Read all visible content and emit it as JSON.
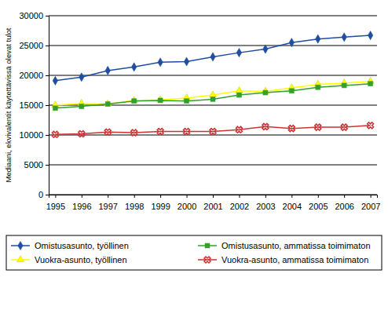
{
  "chart_data": {
    "type": "line",
    "y_label": "Mediaani, ekvivalentit käytettävissä olevat tulot",
    "categories": [
      "1995",
      "1996",
      "1997",
      "1998",
      "1999",
      "2000",
      "2001",
      "2002",
      "2003",
      "2004",
      "2005",
      "2006",
      "2007"
    ],
    "series": [
      {
        "name": "Omistusasunto, työllinen",
        "color": "#1f4e9e",
        "marker": "diamond",
        "values": [
          19100,
          19700,
          20800,
          21400,
          22200,
          22300,
          23100,
          23800,
          24400,
          25500,
          26100,
          26400,
          26700
        ]
      },
      {
        "name": "Vuokra-asunto, työllinen",
        "color": "#ffff00",
        "marker": "triangle",
        "values": [
          15000,
          15300,
          15200,
          15800,
          15900,
          16200,
          16700,
          17400,
          17300,
          17900,
          18500,
          18700,
          19000
        ]
      },
      {
        "name": "Omistusasunto, ammatissa toimimaton",
        "color": "#33a02c",
        "marker": "square",
        "values": [
          14500,
          14800,
          15200,
          15700,
          15800,
          15700,
          16000,
          16700,
          17100,
          17400,
          18000,
          18300,
          18600
        ]
      },
      {
        "name": "Vuokra-asunto, ammatissa toimimaton",
        "color": "#cc3333",
        "marker": "x",
        "values": [
          10100,
          10200,
          10500,
          10400,
          10600,
          10600,
          10600,
          10900,
          11400,
          11100,
          11300,
          11300,
          11600
        ]
      }
    ],
    "ylim": [
      0,
      30000
    ],
    "yticks": [
      0,
      5000,
      10000,
      15000,
      20000,
      25000,
      30000
    ],
    "grid": true,
    "legend": "bottom"
  }
}
